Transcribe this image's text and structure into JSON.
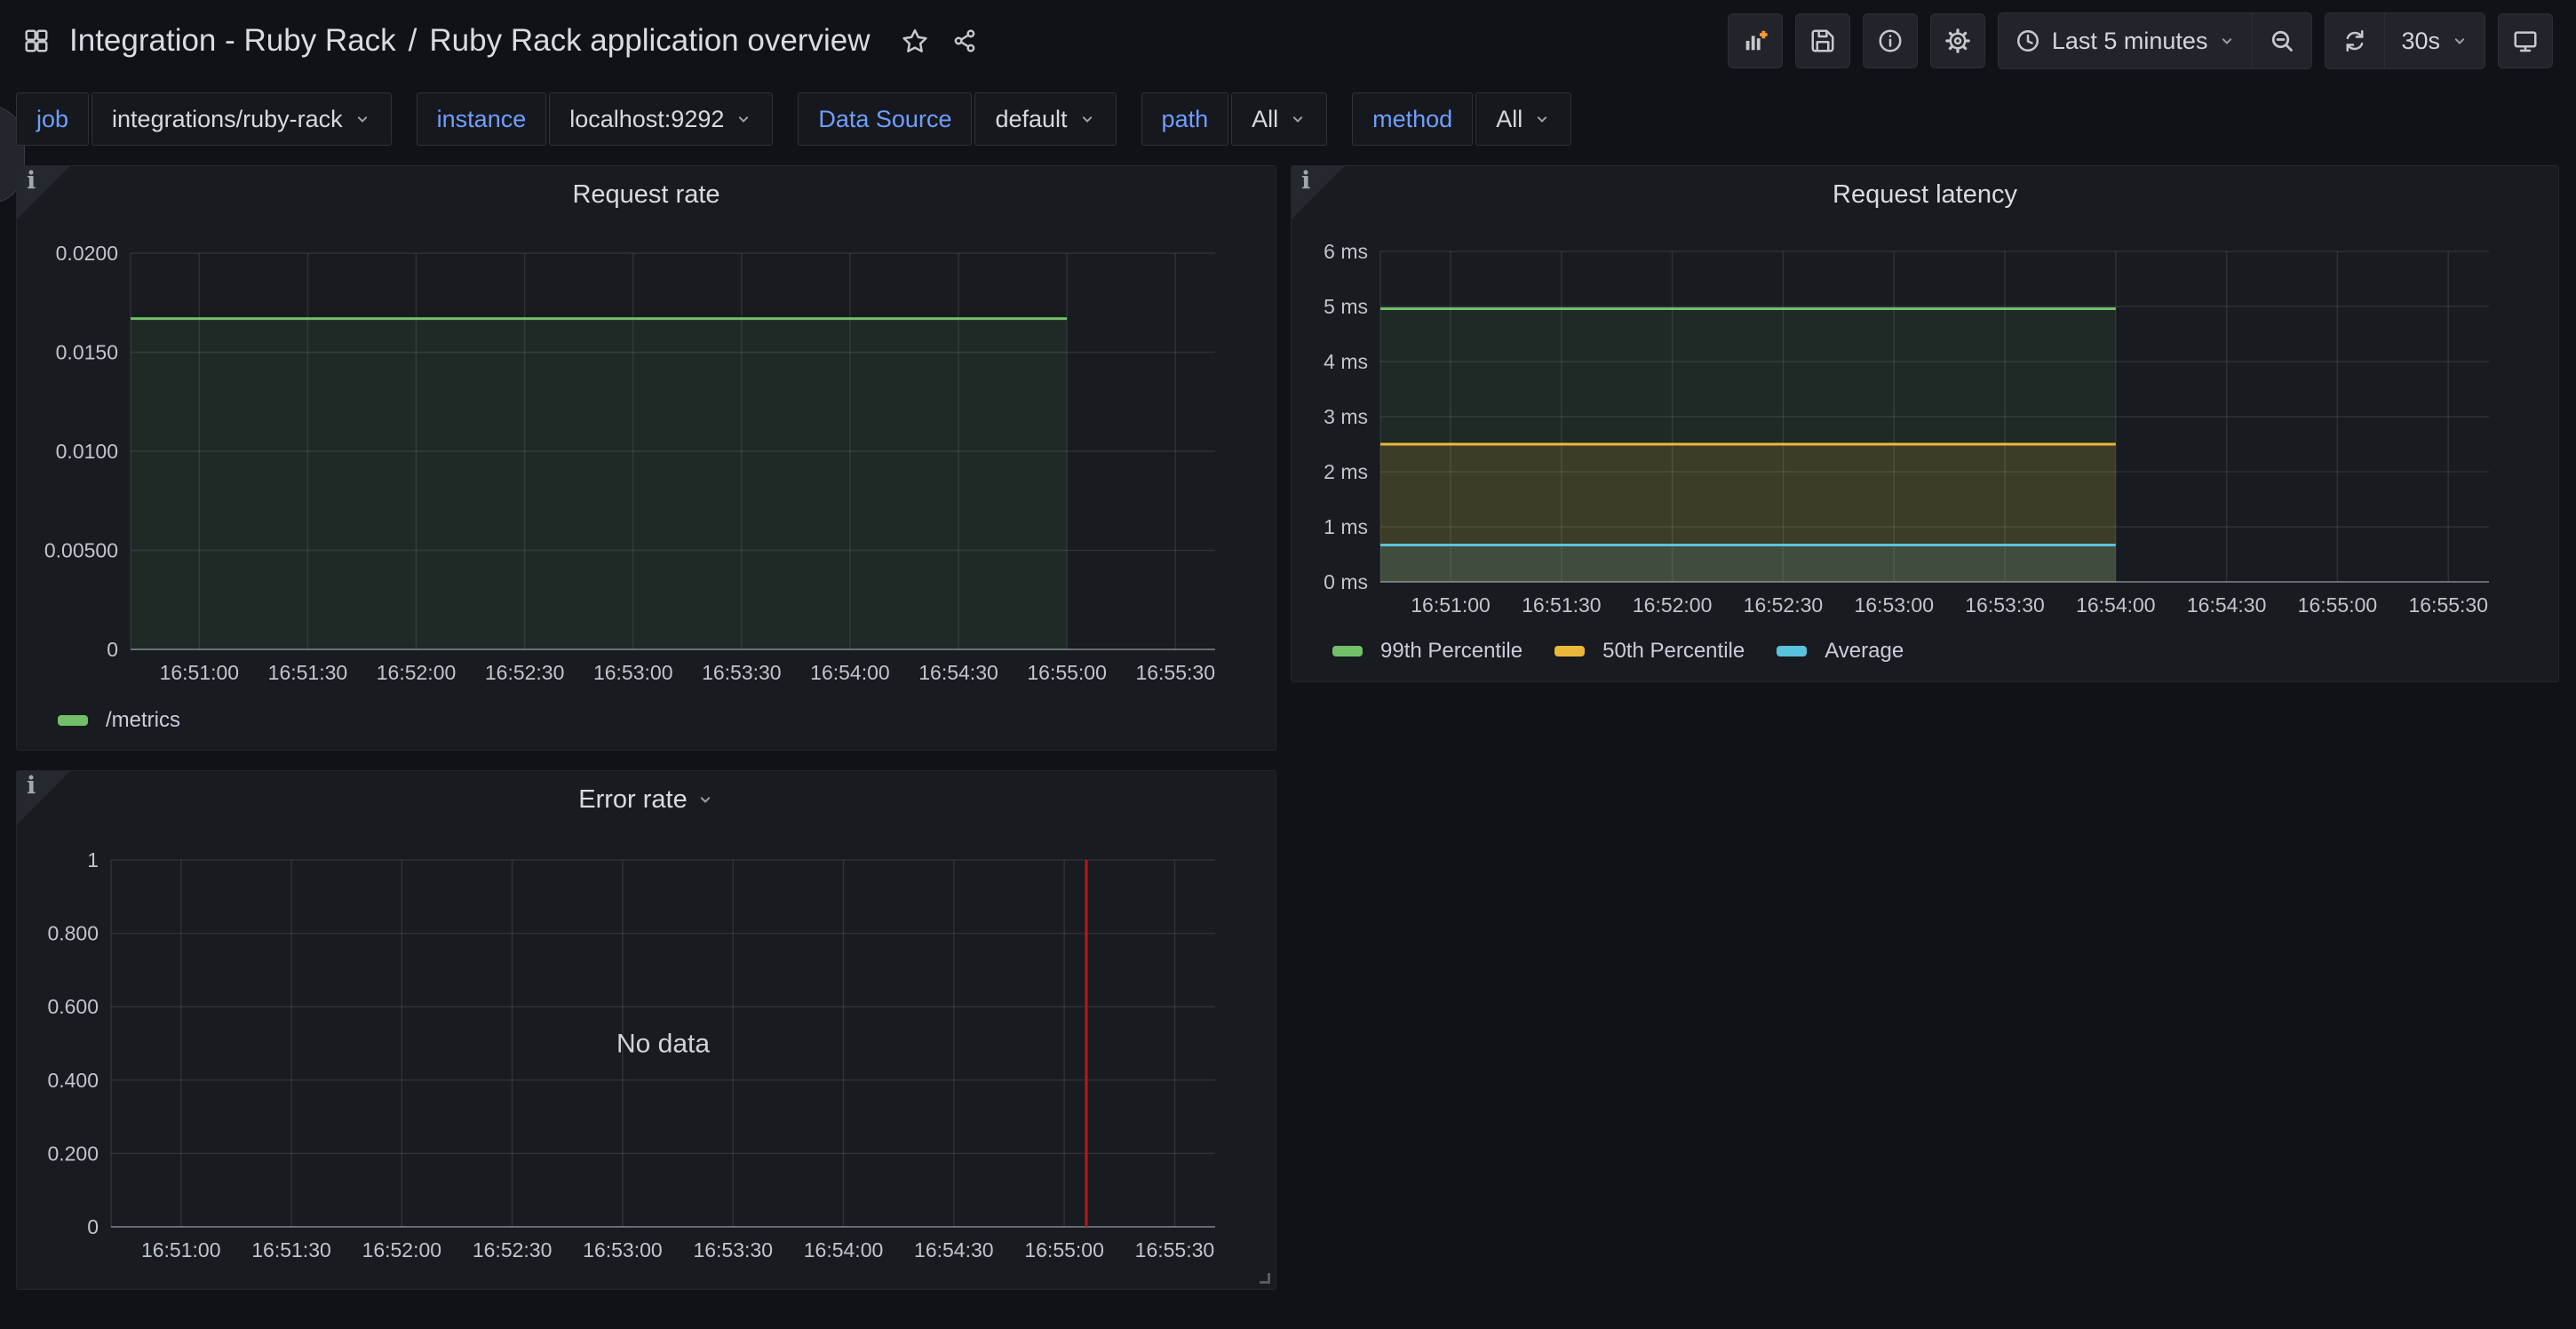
{
  "header": {
    "folder": "Integration - Ruby Rack",
    "separator": "/",
    "dashboard_title": "Ruby Rack application overview",
    "toolbar": {
      "time_range_label": "Last 5 minutes",
      "refresh_interval_label": "30s"
    }
  },
  "variables": [
    {
      "label": "job",
      "value": "integrations/ruby-rack"
    },
    {
      "label": "instance",
      "value": "localhost:9292"
    },
    {
      "label": "Data Source",
      "value": "default"
    },
    {
      "label": "path",
      "value": "All"
    },
    {
      "label": "method",
      "value": "All"
    }
  ],
  "colors": {
    "green": "#73BF69",
    "yellow": "#EAB839",
    "cyan": "#5AC3DC",
    "annotation_red": "#B41A1C",
    "variable_label_blue": "#6E9FFF",
    "add_panel_orange": "#FF9830",
    "panel_background": "#181B1F",
    "page_background": "#111217"
  },
  "chart_data": [
    {
      "type": "line",
      "title": "Request rate",
      "x_range": [
        "16:50:41",
        "16:55:41"
      ],
      "x_ticks": [
        "16:51:00",
        "16:51:30",
        "16:52:00",
        "16:52:30",
        "16:53:00",
        "16:53:30",
        "16:54:00",
        "16:54:30",
        "16:55:00",
        "16:55:30"
      ],
      "ylim": [
        0,
        0.02
      ],
      "y_ticks": [
        {
          "value": 0,
          "label": "0"
        },
        {
          "value": 0.005,
          "label": "0.00500"
        },
        {
          "value": 0.01,
          "label": "0.0100"
        },
        {
          "value": 0.015,
          "label": "0.0150"
        },
        {
          "value": 0.02,
          "label": "0.0200"
        }
      ],
      "grid": true,
      "legend_position": "bottom",
      "series": [
        {
          "name": "/metrics",
          "color": "#73BF69",
          "fill_opacity": 0.09,
          "points": [
            [
              "16:50:41",
              0.0167
            ],
            [
              "16:55:00",
              0.0167
            ]
          ]
        }
      ]
    },
    {
      "type": "line",
      "title": "Request latency",
      "x_range": [
        "16:50:41",
        "16:55:41"
      ],
      "x_ticks": [
        "16:51:00",
        "16:51:30",
        "16:52:00",
        "16:52:30",
        "16:53:00",
        "16:53:30",
        "16:54:00",
        "16:54:30",
        "16:55:00",
        "16:55:30"
      ],
      "ylim": [
        0,
        6
      ],
      "y_ticks": [
        {
          "value": 0,
          "label": "0 ms"
        },
        {
          "value": 1,
          "label": "1 ms"
        },
        {
          "value": 2,
          "label": "2 ms"
        },
        {
          "value": 3,
          "label": "3 ms"
        },
        {
          "value": 4,
          "label": "4 ms"
        },
        {
          "value": 5,
          "label": "5 ms"
        },
        {
          "value": 6,
          "label": "6 ms"
        }
      ],
      "grid": true,
      "legend_position": "bottom",
      "series": [
        {
          "name": "99th Percentile",
          "color": "#73BF69",
          "fill_opacity": 0.09,
          "points": [
            [
              "16:50:41",
              4.96
            ],
            [
              "16:54:00",
              4.96
            ]
          ]
        },
        {
          "name": "50th Percentile",
          "color": "#EAB839",
          "fill_opacity": 0.15,
          "points": [
            [
              "16:50:41",
              2.5
            ],
            [
              "16:54:00",
              2.5
            ]
          ]
        },
        {
          "name": "Average",
          "color": "#5AC3DC",
          "fill_opacity": 0.12,
          "points": [
            [
              "16:50:41",
              0.67
            ],
            [
              "16:54:00",
              0.67
            ]
          ]
        }
      ]
    },
    {
      "type": "line",
      "title": "Error rate",
      "x_range": [
        "16:50:41",
        "16:55:41"
      ],
      "x_ticks": [
        "16:51:00",
        "16:51:30",
        "16:52:00",
        "16:52:30",
        "16:53:00",
        "16:53:30",
        "16:54:00",
        "16:54:30",
        "16:55:00",
        "16:55:30"
      ],
      "ylim": [
        0,
        1
      ],
      "y_ticks": [
        {
          "value": 0,
          "label": "0"
        },
        {
          "value": 0.2,
          "label": "0.200"
        },
        {
          "value": 0.4,
          "label": "0.400"
        },
        {
          "value": 0.6,
          "label": "0.600"
        },
        {
          "value": 0.8,
          "label": "0.800"
        },
        {
          "value": 1,
          "label": "1"
        }
      ],
      "grid": true,
      "no_data_label": "No data",
      "series": [],
      "annotations": [
        {
          "x": "16:55:06",
          "color": "#B41A1C"
        }
      ]
    }
  ]
}
